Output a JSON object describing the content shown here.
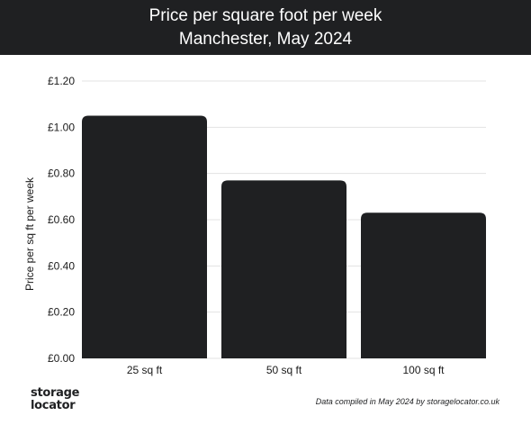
{
  "header": {
    "title_line1": "Price per square foot per week",
    "title_line2": "Manchester, May 2024"
  },
  "chart_data": {
    "type": "bar",
    "title": "Price per square foot per week",
    "subtitle": "Manchester, May 2024",
    "ylabel": "Price per sq ft per week",
    "xlabel": "",
    "categories": [
      "25 sq ft",
      "50 sq ft",
      "100 sq ft"
    ],
    "values": [
      1.05,
      0.77,
      0.63
    ],
    "ylim": [
      0,
      1.2
    ],
    "yticks": [
      0,
      0.2,
      0.4,
      0.6,
      0.8,
      1.0,
      1.2
    ],
    "ytick_labels": [
      "£0.00",
      "£0.20",
      "£0.40",
      "£0.60",
      "£0.80",
      "£1.00",
      "£1.20"
    ],
    "grid": true,
    "bar_color": "#1f2022"
  },
  "footer": {
    "logo_line1": "storage",
    "logo_line2": "locator",
    "note": "Data compiled in May 2024 by storagelocator.co.uk"
  }
}
